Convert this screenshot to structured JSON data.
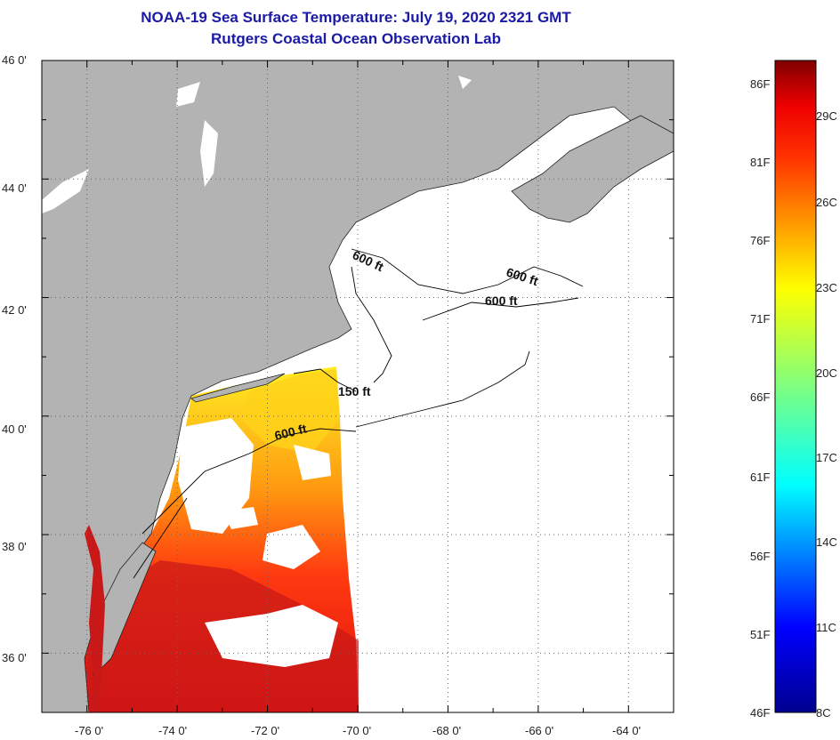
{
  "title": {
    "line1": "NOAA-19 Sea Surface Temperature:  July 19, 2020 2321 GMT",
    "line2": "Rutgers Coastal Ocean Observation Lab"
  },
  "colors": {
    "title": "#1a1aa6",
    "land": "#b3b3b3",
    "no_data": "#ffffff",
    "contour": "#000000"
  },
  "map": {
    "lon_range": [
      -77,
      -63
    ],
    "lat_range": [
      35,
      46
    ],
    "y_ticks": [
      "46 0'",
      "44 0'",
      "42 0'",
      "40 0'",
      "38 0'",
      "36 0'"
    ],
    "x_ticks": [
      "-76 0'",
      "-74 0'",
      "-72 0'",
      "-70 0'",
      "-68 0'",
      "-66 0'",
      "-64 0'"
    ],
    "grid": "dotted",
    "contour_labels": [
      "600 ft",
      "600 ft",
      "600 ft",
      "150 ft",
      "600 ft"
    ]
  },
  "colorbar": {
    "range_c": [
      8,
      31
    ],
    "left_labels": [
      "86F",
      "81F",
      "76F",
      "71F",
      "66F",
      "61F",
      "56F",
      "51F",
      "46F"
    ],
    "right_labels": [
      "29C",
      "26C",
      "23C",
      "20C",
      "17C",
      "14C",
      "11C",
      "8C"
    ]
  }
}
